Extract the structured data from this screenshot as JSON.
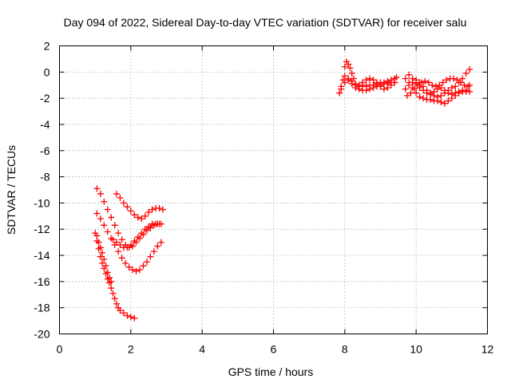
{
  "chart_data": {
    "type": "scatter",
    "title": "Day 094 of 2022, Sidereal Day-to-day VTEC variation (SDTVAR) for receiver salu",
    "xlabel": "GPS time / hours",
    "ylabel": "SDTVAR / TECUs",
    "xlim": [
      0,
      12
    ],
    "ylim": [
      -20,
      2
    ],
    "xticks": [
      0,
      2,
      4,
      6,
      8,
      10,
      12
    ],
    "yticks": [
      2,
      0,
      -2,
      -4,
      -6,
      -8,
      -10,
      -12,
      -14,
      -16,
      -18,
      -20
    ],
    "grid": true,
    "marker": "plus",
    "color": "#ff0000",
    "series": [
      {
        "points": [
          [
            1.0,
            -12.3
          ],
          [
            1.05,
            -12.9
          ],
          [
            1.1,
            -13.5
          ],
          [
            1.15,
            -14.1
          ],
          [
            1.2,
            -14.6
          ],
          [
            1.25,
            -15.0
          ],
          [
            1.3,
            -15.4
          ],
          [
            1.35,
            -15.8
          ],
          [
            1.4,
            -16.1
          ],
          [
            1.45,
            -16.5
          ],
          [
            1.5,
            -16.9
          ],
          [
            1.55,
            -17.3
          ],
          [
            1.6,
            -17.7
          ],
          [
            1.65,
            -18.0
          ],
          [
            1.7,
            -18.2
          ],
          [
            1.8,
            -18.4
          ],
          [
            1.9,
            -18.6
          ],
          [
            2.0,
            -18.7
          ],
          [
            2.1,
            -18.8
          ]
        ]
      },
      {
        "points": [
          [
            1.05,
            -12.5
          ],
          [
            1.1,
            -13.0
          ],
          [
            1.15,
            -13.4
          ],
          [
            1.2,
            -13.8
          ],
          [
            1.25,
            -14.3
          ],
          [
            1.3,
            -14.8
          ],
          [
            1.35,
            -15.3
          ],
          [
            1.4,
            -15.7
          ],
          [
            1.45,
            -16.0
          ]
        ]
      },
      {
        "points": [
          [
            1.05,
            -10.8
          ],
          [
            1.15,
            -11.2
          ],
          [
            1.25,
            -11.7
          ],
          [
            1.35,
            -12.2
          ],
          [
            1.45,
            -12.7
          ],
          [
            1.55,
            -13.2
          ],
          [
            1.65,
            -13.7
          ],
          [
            1.75,
            -14.2
          ],
          [
            1.85,
            -14.6
          ],
          [
            1.95,
            -14.9
          ],
          [
            2.05,
            -15.1
          ],
          [
            2.15,
            -15.2
          ],
          [
            2.25,
            -15.1
          ],
          [
            2.35,
            -14.8
          ],
          [
            2.45,
            -14.5
          ],
          [
            2.55,
            -14.1
          ],
          [
            2.65,
            -13.7
          ],
          [
            2.75,
            -13.3
          ],
          [
            2.85,
            -13.0
          ]
        ]
      },
      {
        "points": [
          [
            1.05,
            -8.9
          ],
          [
            1.15,
            -9.3
          ],
          [
            1.25,
            -9.9
          ],
          [
            1.35,
            -10.5
          ],
          [
            1.45,
            -11.1
          ],
          [
            1.55,
            -11.7
          ],
          [
            1.65,
            -12.3
          ],
          [
            1.75,
            -12.8
          ],
          [
            1.85,
            -13.2
          ],
          [
            1.95,
            -13.4
          ],
          [
            2.05,
            -13.3
          ],
          [
            2.15,
            -13.0
          ],
          [
            2.25,
            -12.7
          ],
          [
            2.35,
            -12.4
          ],
          [
            2.45,
            -12.1
          ],
          [
            2.55,
            -11.9
          ],
          [
            2.65,
            -11.7
          ],
          [
            2.75,
            -11.6
          ],
          [
            2.85,
            -11.6
          ]
        ]
      },
      {
        "points": [
          [
            1.6,
            -9.3
          ],
          [
            1.7,
            -9.6
          ],
          [
            1.8,
            -10.0
          ],
          [
            1.9,
            -10.3
          ],
          [
            2.0,
            -10.6
          ],
          [
            2.1,
            -10.9
          ],
          [
            2.2,
            -11.1
          ],
          [
            2.3,
            -11.2
          ],
          [
            2.4,
            -11.0
          ],
          [
            2.5,
            -10.7
          ],
          [
            2.6,
            -10.5
          ],
          [
            2.7,
            -10.4
          ],
          [
            2.8,
            -10.4
          ],
          [
            2.9,
            -10.5
          ]
        ]
      },
      {
        "points": [
          [
            1.5,
            -12.8
          ],
          [
            1.6,
            -13.0
          ],
          [
            1.7,
            -13.2
          ],
          [
            1.8,
            -13.4
          ],
          [
            1.9,
            -13.4
          ],
          [
            2.0,
            -13.2
          ],
          [
            2.1,
            -12.9
          ],
          [
            2.2,
            -12.6
          ],
          [
            2.3,
            -12.3
          ],
          [
            2.4,
            -12.0
          ],
          [
            2.5,
            -11.8
          ],
          [
            2.6,
            -11.6
          ],
          [
            2.7,
            -11.6
          ],
          [
            2.8,
            -11.6
          ]
        ]
      },
      {
        "points": [
          [
            7.85,
            -1.6
          ],
          [
            7.9,
            -1.3
          ],
          [
            7.95,
            -0.6
          ],
          [
            8.0,
            0.4
          ],
          [
            8.05,
            0.8
          ],
          [
            8.1,
            0.6
          ],
          [
            8.15,
            0.3
          ],
          [
            8.2,
            -0.1
          ],
          [
            8.25,
            -0.5
          ],
          [
            8.3,
            -0.9
          ],
          [
            8.4,
            -1.0
          ],
          [
            8.5,
            -1.0
          ],
          [
            8.6,
            -1.1
          ],
          [
            8.7,
            -1.0
          ],
          [
            8.8,
            -1.0
          ],
          [
            8.9,
            -0.9
          ],
          [
            9.0,
            -0.8
          ],
          [
            9.1,
            -0.8
          ],
          [
            9.2,
            -0.7
          ],
          [
            9.3,
            -0.6
          ],
          [
            9.4,
            -0.5
          ]
        ]
      },
      {
        "points": [
          [
            7.9,
            -1.1
          ],
          [
            8.0,
            -0.8
          ],
          [
            8.1,
            -0.6
          ],
          [
            8.2,
            -0.7
          ],
          [
            8.3,
            -1.0
          ],
          [
            8.4,
            -1.3
          ],
          [
            8.5,
            -1.4
          ],
          [
            8.6,
            -1.4
          ],
          [
            8.7,
            -1.3
          ],
          [
            8.8,
            -1.2
          ],
          [
            8.9,
            -1.1
          ],
          [
            9.0,
            -1.0
          ],
          [
            9.1,
            -0.9
          ],
          [
            9.2,
            -0.9
          ],
          [
            9.3,
            -0.8
          ],
          [
            9.4,
            -0.8
          ]
        ]
      },
      {
        "points": [
          [
            8.0,
            -0.3
          ],
          [
            8.1,
            -0.5
          ],
          [
            8.2,
            -0.9
          ],
          [
            8.3,
            -1.2
          ],
          [
            8.4,
            -1.1
          ],
          [
            8.5,
            -0.8
          ],
          [
            8.6,
            -0.6
          ],
          [
            8.7,
            -0.5
          ],
          [
            8.8,
            -0.6
          ],
          [
            8.9,
            -0.8
          ],
          [
            9.0,
            -1.1
          ],
          [
            9.1,
            -1.3
          ],
          [
            9.2,
            -1.2
          ],
          [
            9.3,
            -1.0
          ],
          [
            9.4,
            -0.8
          ],
          [
            9.45,
            -0.4
          ]
        ]
      },
      {
        "points": [
          [
            9.7,
            -1.3
          ],
          [
            9.8,
            -1.0
          ],
          [
            9.9,
            -0.8
          ],
          [
            10.0,
            -0.6
          ],
          [
            10.1,
            -0.8
          ],
          [
            10.2,
            -1.1
          ],
          [
            10.3,
            -1.4
          ],
          [
            10.4,
            -1.6
          ],
          [
            10.5,
            -1.8
          ],
          [
            10.6,
            -1.9
          ],
          [
            10.7,
            -1.8
          ],
          [
            10.8,
            -1.6
          ],
          [
            10.9,
            -1.4
          ],
          [
            11.0,
            -1.2
          ],
          [
            11.1,
            -1.1
          ],
          [
            11.2,
            -0.8
          ],
          [
            11.3,
            -0.5
          ],
          [
            11.4,
            -0.1
          ],
          [
            11.5,
            0.2
          ]
        ]
      },
      {
        "points": [
          [
            9.7,
            -0.5
          ],
          [
            9.8,
            -0.8
          ],
          [
            9.9,
            -1.2
          ],
          [
            10.0,
            -1.6
          ],
          [
            10.1,
            -1.9
          ],
          [
            10.2,
            -2.0
          ],
          [
            10.3,
            -2.1
          ],
          [
            10.4,
            -2.1
          ],
          [
            10.5,
            -2.2
          ],
          [
            10.6,
            -2.2
          ],
          [
            10.7,
            -2.3
          ],
          [
            10.8,
            -2.4
          ],
          [
            10.9,
            -2.2
          ],
          [
            11.0,
            -2.0
          ],
          [
            11.1,
            -1.8
          ],
          [
            11.2,
            -1.6
          ],
          [
            11.3,
            -1.5
          ],
          [
            11.4,
            -1.5
          ],
          [
            11.5,
            -1.5
          ]
        ]
      },
      {
        "points": [
          [
            9.75,
            -1.8
          ],
          [
            9.85,
            -1.6
          ],
          [
            9.95,
            -1.3
          ],
          [
            10.05,
            -1.0
          ],
          [
            10.15,
            -0.8
          ],
          [
            10.25,
            -0.7
          ],
          [
            10.35,
            -0.8
          ],
          [
            10.45,
            -1.0
          ],
          [
            10.55,
            -1.1
          ],
          [
            10.65,
            -1.0
          ],
          [
            10.75,
            -0.8
          ],
          [
            10.85,
            -0.6
          ],
          [
            10.95,
            -0.5
          ],
          [
            11.05,
            -0.5
          ],
          [
            11.15,
            -0.6
          ],
          [
            11.25,
            -0.8
          ],
          [
            11.35,
            -1.0
          ],
          [
            11.45,
            -1.1
          ],
          [
            11.5,
            -1.0
          ]
        ]
      },
      {
        "points": [
          [
            9.8,
            -0.2
          ],
          [
            9.9,
            -0.5
          ],
          [
            10.0,
            -0.9
          ],
          [
            10.1,
            -1.2
          ],
          [
            10.2,
            -1.4
          ],
          [
            10.3,
            -1.6
          ],
          [
            10.4,
            -1.7
          ],
          [
            10.5,
            -1.5
          ],
          [
            10.6,
            -1.3
          ],
          [
            10.7,
            -1.2
          ],
          [
            10.8,
            -1.4
          ],
          [
            10.9,
            -1.6
          ],
          [
            11.0,
            -1.7
          ],
          [
            11.1,
            -1.6
          ],
          [
            11.2,
            -1.5
          ],
          [
            11.3,
            -1.4
          ],
          [
            11.4,
            -1.4
          ]
        ]
      }
    ]
  }
}
